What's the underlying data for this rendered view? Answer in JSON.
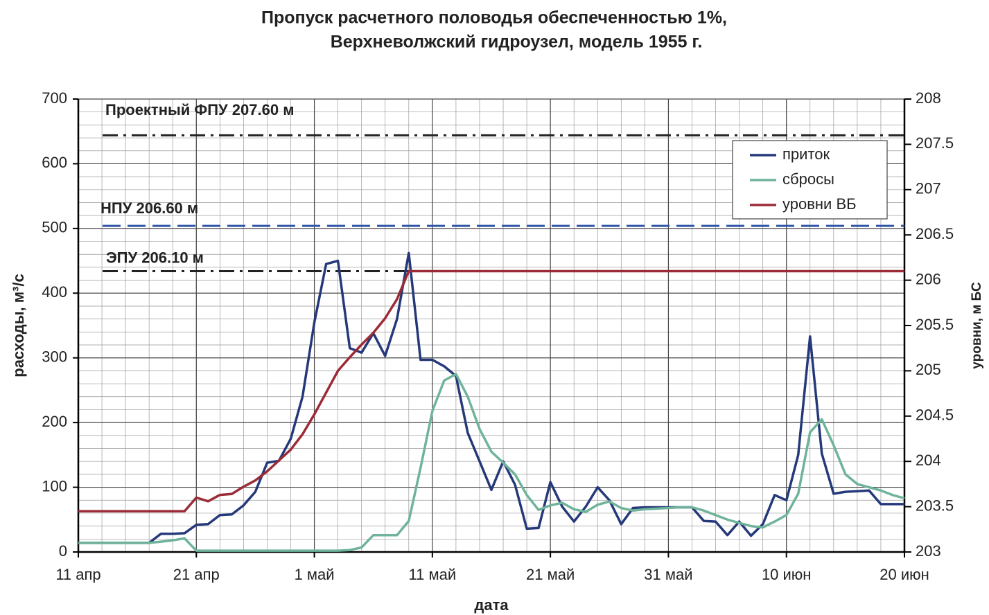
{
  "chart_data": {
    "type": "line",
    "title": [
      "Пропуск расчетного половодья обеспеченностью 1%,",
      "Верхневолжский гидроузел, модель 1955 г."
    ],
    "xlabel": "дата",
    "ylabel": "расходы, м³/с",
    "y2label": "уровни, м БС",
    "categories": [
      "11 апр",
      null,
      null,
      null,
      null,
      null,
      null,
      null,
      null,
      null,
      "21 апр",
      null,
      null,
      null,
      null,
      null,
      null,
      null,
      null,
      null,
      "1 май",
      null,
      null,
      null,
      null,
      null,
      null,
      null,
      null,
      null,
      "11 май",
      null,
      null,
      null,
      null,
      null,
      null,
      null,
      null,
      null,
      "21 май",
      null,
      null,
      null,
      null,
      null,
      null,
      null,
      null,
      null,
      "31 май",
      null,
      null,
      null,
      null,
      null,
      null,
      null,
      null,
      null,
      "10 июн",
      null,
      null,
      null,
      null,
      null,
      null,
      null,
      null,
      null,
      "20 июн"
    ],
    "ylim": [
      0,
      700
    ],
    "yticks": [
      0,
      100,
      200,
      300,
      400,
      500,
      600,
      700
    ],
    "y2lim": [
      203,
      208
    ],
    "y2ticks": [
      203,
      203.5,
      204,
      204.5,
      205,
      205.5,
      206,
      206.5,
      207,
      207.5,
      208
    ],
    "grid": true,
    "legend": "upper right",
    "series": [
      {
        "name": "приток",
        "color": "#25397a",
        "values": [
          14,
          14,
          14,
          14,
          14,
          14,
          14,
          28,
          28,
          29,
          42,
          43,
          57,
          58,
          72,
          93,
          138,
          141,
          175,
          240,
          355,
          445,
          450,
          315,
          308,
          338,
          303,
          360,
          462,
          297,
          297,
          287,
          272,
          184,
          140,
          96,
          140,
          104,
          36,
          37,
          108,
          70,
          47,
          70,
          100,
          80,
          43,
          68,
          69,
          69,
          69,
          69,
          69,
          48,
          47,
          26,
          47,
          25,
          43,
          88,
          80,
          150,
          333,
          152,
          90,
          93,
          94,
          95,
          74,
          74,
          74
        ]
      },
      {
        "name": "сбросы",
        "color": "#6fb49a",
        "values": [
          14,
          14,
          14,
          14,
          14,
          14,
          14,
          16,
          18,
          21,
          2,
          2,
          2,
          2,
          2,
          2,
          2,
          2,
          2,
          2,
          2,
          2,
          2,
          3,
          7,
          26,
          26,
          26,
          48,
          130,
          218,
          265,
          275,
          240,
          190,
          155,
          138,
          120,
          88,
          65,
          72,
          76,
          66,
          62,
          73,
          78,
          68,
          64,
          66,
          67,
          68,
          69,
          69,
          64,
          57,
          50,
          45,
          40,
          38,
          47,
          57,
          90,
          185,
          205,
          165,
          120,
          105,
          100,
          95,
          88,
          83
        ]
      },
      {
        "name": "уровни ВБ",
        "color": "#9b2b36",
        "axis": "y2",
        "values": [
          203.45,
          203.45,
          203.45,
          203.45,
          203.45,
          203.45,
          203.45,
          203.45,
          203.45,
          203.45,
          203.6,
          203.56,
          203.63,
          203.64,
          203.72,
          203.79,
          203.89,
          204.01,
          204.13,
          204.3,
          204.52,
          204.76,
          205.0,
          205.15,
          205.29,
          205.42,
          205.58,
          205.79,
          206.1,
          206.1,
          206.1,
          206.1,
          206.1,
          206.1,
          206.1,
          206.1,
          206.1,
          206.1,
          206.1,
          206.1,
          206.1,
          206.1,
          206.1,
          206.1,
          206.1,
          206.1,
          206.1,
          206.1,
          206.1,
          206.1,
          206.1,
          206.1,
          206.1,
          206.1,
          206.1,
          206.1,
          206.1,
          206.1,
          206.1,
          206.1,
          206.1,
          206.1,
          206.1,
          206.1,
          206.1,
          206.1,
          206.1,
          206.1,
          206.1,
          206.1,
          206.1
        ]
      }
    ],
    "annotations": [
      {
        "text": "Проектный ФПУ 207.60 м",
        "value": 207.6,
        "color": "#222222",
        "style": "dashdot"
      },
      {
        "text": "НПУ 206.60 м",
        "value": 206.6,
        "color": "#2f55a8",
        "style": "dashed"
      },
      {
        "text": "ЭПУ 206.10 м",
        "value": 206.1,
        "color": "#222222",
        "style": "dashdot"
      }
    ]
  }
}
